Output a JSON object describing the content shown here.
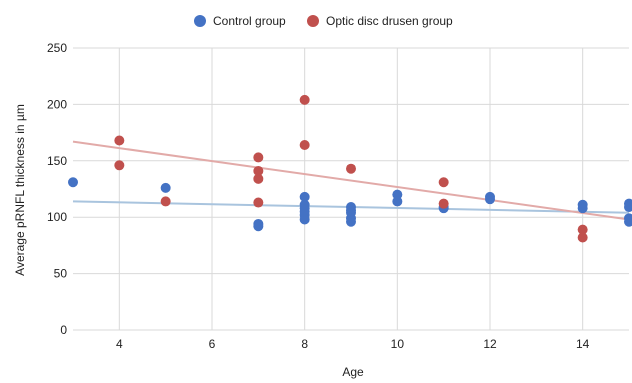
{
  "chart_data": {
    "type": "scatter",
    "title": "",
    "xlabel": "Age",
    "ylabel": "Average pRNFL thickness in µm",
    "xlim": [
      3,
      15
    ],
    "ylim": [
      0,
      250
    ],
    "x_ticks": [
      "4",
      "6",
      "8",
      "10",
      "12",
      "14"
    ],
    "y_ticks": [
      "0",
      "50",
      "100",
      "150",
      "200",
      "250"
    ],
    "grid": "vertical",
    "legend_position": "top",
    "series": [
      {
        "name": "Control group",
        "color": "#4472c4",
        "trendline_color": "#a9c4de",
        "trendline": {
          "from": [
            3,
            114
          ],
          "to": [
            15,
            104
          ]
        },
        "points": [
          [
            3,
            131
          ],
          [
            5,
            126
          ],
          [
            7,
            94
          ],
          [
            7,
            92
          ],
          [
            8,
            118
          ],
          [
            8,
            111
          ],
          [
            8,
            108
          ],
          [
            8,
            105
          ],
          [
            8,
            102
          ],
          [
            8,
            98
          ],
          [
            9,
            109
          ],
          [
            9,
            106
          ],
          [
            9,
            104
          ],
          [
            9,
            99
          ],
          [
            9,
            96
          ],
          [
            10,
            120
          ],
          [
            10,
            114
          ],
          [
            11,
            109
          ],
          [
            11,
            108
          ],
          [
            12,
            118
          ],
          [
            12,
            116
          ],
          [
            14,
            111
          ],
          [
            14,
            108
          ],
          [
            15,
            112
          ],
          [
            15,
            109
          ],
          [
            15,
            99
          ],
          [
            15,
            96
          ]
        ]
      },
      {
        "name": "Optic disc drusen group",
        "color": "#c0504d",
        "trendline_color": "#e2aaa8",
        "trendline": {
          "from": [
            3,
            167
          ],
          "to": [
            15,
            98
          ]
        },
        "points": [
          [
            4,
            168
          ],
          [
            4,
            146
          ],
          [
            5,
            114
          ],
          [
            7,
            153
          ],
          [
            7,
            141
          ],
          [
            7,
            134
          ],
          [
            7,
            113
          ],
          [
            8,
            204
          ],
          [
            8,
            164
          ],
          [
            9,
            143
          ],
          [
            11,
            131
          ],
          [
            11,
            112
          ],
          [
            14,
            89
          ],
          [
            14,
            82
          ]
        ]
      }
    ]
  }
}
